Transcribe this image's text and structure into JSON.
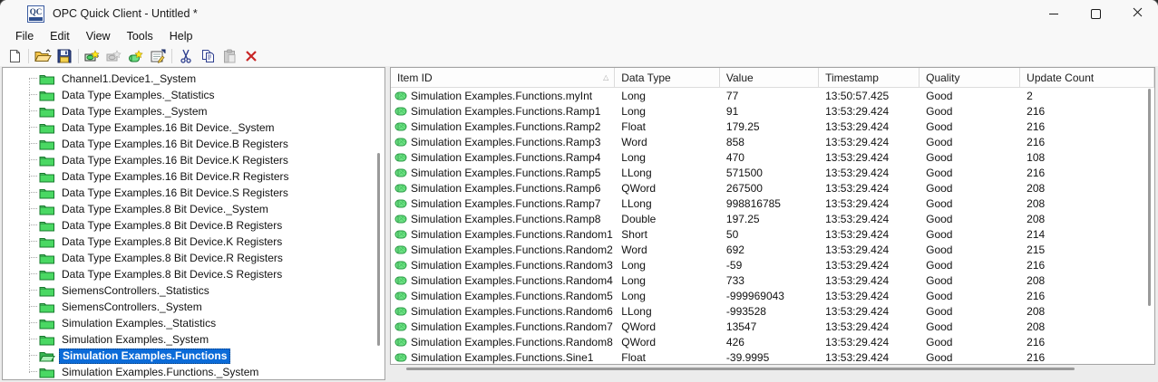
{
  "window": {
    "title": "OPC Quick Client - Untitled *",
    "app_icon_text": "QC",
    "controls": [
      {
        "name": "minimize-button",
        "icon": "minimize-icon"
      },
      {
        "name": "maximize-button",
        "icon": "maximize-icon"
      },
      {
        "name": "close-button",
        "icon": "close-icon"
      }
    ]
  },
  "menu": {
    "items": [
      "File",
      "Edit",
      "View",
      "Tools",
      "Help"
    ]
  },
  "toolbar": {
    "buttons": [
      {
        "name": "new-file-button",
        "icon": "new-file-icon",
        "enabled": true
      },
      {
        "separator": true
      },
      {
        "name": "open-button",
        "icon": "open-icon",
        "enabled": true
      },
      {
        "name": "save-button",
        "icon": "save-icon",
        "enabled": true
      },
      {
        "separator": true
      },
      {
        "name": "new-server-connection-button",
        "icon": "new-server-icon",
        "enabled": true
      },
      {
        "name": "new-group-button",
        "icon": "new-group-icon",
        "enabled": false
      },
      {
        "name": "new-item-button",
        "icon": "new-item-icon",
        "enabled": true
      },
      {
        "name": "properties-button",
        "icon": "properties-icon",
        "enabled": true
      },
      {
        "separator": true
      },
      {
        "name": "cut-button",
        "icon": "cut-icon",
        "enabled": true
      },
      {
        "name": "copy-button",
        "icon": "copy-icon",
        "enabled": true
      },
      {
        "name": "paste-button",
        "icon": "paste-icon",
        "enabled": false
      },
      {
        "name": "delete-button",
        "icon": "delete-icon",
        "enabled": true
      }
    ]
  },
  "tree": {
    "items": [
      {
        "label": "Channel1.Device1._System",
        "selected": false
      },
      {
        "label": "Data Type Examples._Statistics",
        "selected": false
      },
      {
        "label": "Data Type Examples._System",
        "selected": false
      },
      {
        "label": "Data Type Examples.16 Bit Device._System",
        "selected": false
      },
      {
        "label": "Data Type Examples.16 Bit Device.B Registers",
        "selected": false
      },
      {
        "label": "Data Type Examples.16 Bit Device.K Registers",
        "selected": false
      },
      {
        "label": "Data Type Examples.16 Bit Device.R Registers",
        "selected": false
      },
      {
        "label": "Data Type Examples.16 Bit Device.S Registers",
        "selected": false
      },
      {
        "label": "Data Type Examples.8 Bit Device._System",
        "selected": false
      },
      {
        "label": "Data Type Examples.8 Bit Device.B Registers",
        "selected": false
      },
      {
        "label": "Data Type Examples.8 Bit Device.K Registers",
        "selected": false
      },
      {
        "label": "Data Type Examples.8 Bit Device.R Registers",
        "selected": false
      },
      {
        "label": "Data Type Examples.8 Bit Device.S Registers",
        "selected": false
      },
      {
        "label": "SiemensControllers._Statistics",
        "selected": false
      },
      {
        "label": "SiemensControllers._System",
        "selected": false
      },
      {
        "label": "Simulation Examples._Statistics",
        "selected": false
      },
      {
        "label": "Simulation Examples._System",
        "selected": false
      },
      {
        "label": "Simulation Examples.Functions",
        "selected": true
      },
      {
        "label": "Simulation Examples.Functions._System",
        "selected": false
      }
    ]
  },
  "table": {
    "columns": [
      "Item ID",
      "Data Type",
      "Value",
      "Timestamp",
      "Quality",
      "Update Count"
    ],
    "sort_column": "Item ID",
    "sort_indicator": "△",
    "rows": [
      {
        "item_id": "Simulation Examples.Functions.myInt",
        "data_type": "Long",
        "value": "77",
        "timestamp": "13:50:57.425",
        "quality": "Good",
        "update_count": "2"
      },
      {
        "item_id": "Simulation Examples.Functions.Ramp1",
        "data_type": "Long",
        "value": "91",
        "timestamp": "13:53:29.424",
        "quality": "Good",
        "update_count": "216"
      },
      {
        "item_id": "Simulation Examples.Functions.Ramp2",
        "data_type": "Float",
        "value": "179.25",
        "timestamp": "13:53:29.424",
        "quality": "Good",
        "update_count": "216"
      },
      {
        "item_id": "Simulation Examples.Functions.Ramp3",
        "data_type": "Word",
        "value": "858",
        "timestamp": "13:53:29.424",
        "quality": "Good",
        "update_count": "216"
      },
      {
        "item_id": "Simulation Examples.Functions.Ramp4",
        "data_type": "Long",
        "value": "470",
        "timestamp": "13:53:29.424",
        "quality": "Good",
        "update_count": "108"
      },
      {
        "item_id": "Simulation Examples.Functions.Ramp5",
        "data_type": "LLong",
        "value": "571500",
        "timestamp": "13:53:29.424",
        "quality": "Good",
        "update_count": "216"
      },
      {
        "item_id": "Simulation Examples.Functions.Ramp6",
        "data_type": "QWord",
        "value": "267500",
        "timestamp": "13:53:29.424",
        "quality": "Good",
        "update_count": "208"
      },
      {
        "item_id": "Simulation Examples.Functions.Ramp7",
        "data_type": "LLong",
        "value": "998816785",
        "timestamp": "13:53:29.424",
        "quality": "Good",
        "update_count": "208"
      },
      {
        "item_id": "Simulation Examples.Functions.Ramp8",
        "data_type": "Double",
        "value": "197.25",
        "timestamp": "13:53:29.424",
        "quality": "Good",
        "update_count": "208"
      },
      {
        "item_id": "Simulation Examples.Functions.Random1",
        "data_type": "Short",
        "value": "50",
        "timestamp": "13:53:29.424",
        "quality": "Good",
        "update_count": "214"
      },
      {
        "item_id": "Simulation Examples.Functions.Random2",
        "data_type": "Word",
        "value": "692",
        "timestamp": "13:53:29.424",
        "quality": "Good",
        "update_count": "215"
      },
      {
        "item_id": "Simulation Examples.Functions.Random3",
        "data_type": "Long",
        "value": "-59",
        "timestamp": "13:53:29.424",
        "quality": "Good",
        "update_count": "216"
      },
      {
        "item_id": "Simulation Examples.Functions.Random4",
        "data_type": "Long",
        "value": "733",
        "timestamp": "13:53:29.424",
        "quality": "Good",
        "update_count": "208"
      },
      {
        "item_id": "Simulation Examples.Functions.Random5",
        "data_type": "Long",
        "value": "-999969043",
        "timestamp": "13:53:29.424",
        "quality": "Good",
        "update_count": "216"
      },
      {
        "item_id": "Simulation Examples.Functions.Random6",
        "data_type": "LLong",
        "value": "-993528",
        "timestamp": "13:53:29.424",
        "quality": "Good",
        "update_count": "208"
      },
      {
        "item_id": "Simulation Examples.Functions.Random7",
        "data_type": "QWord",
        "value": "13547",
        "timestamp": "13:53:29.424",
        "quality": "Good",
        "update_count": "208"
      },
      {
        "item_id": "Simulation Examples.Functions.Random8",
        "data_type": "QWord",
        "value": "426",
        "timestamp": "13:53:29.424",
        "quality": "Good",
        "update_count": "216"
      },
      {
        "item_id": "Simulation Examples.Functions.Sine1",
        "data_type": "Float",
        "value": "-39.9995",
        "timestamp": "13:53:29.424",
        "quality": "Good",
        "update_count": "216"
      }
    ]
  },
  "colors": {
    "selection_blue": "#0b6bd8",
    "folder_green": "#4ad863",
    "delete_red": "#cc2222",
    "scrollbar_gray": "#9a9a9a"
  }
}
